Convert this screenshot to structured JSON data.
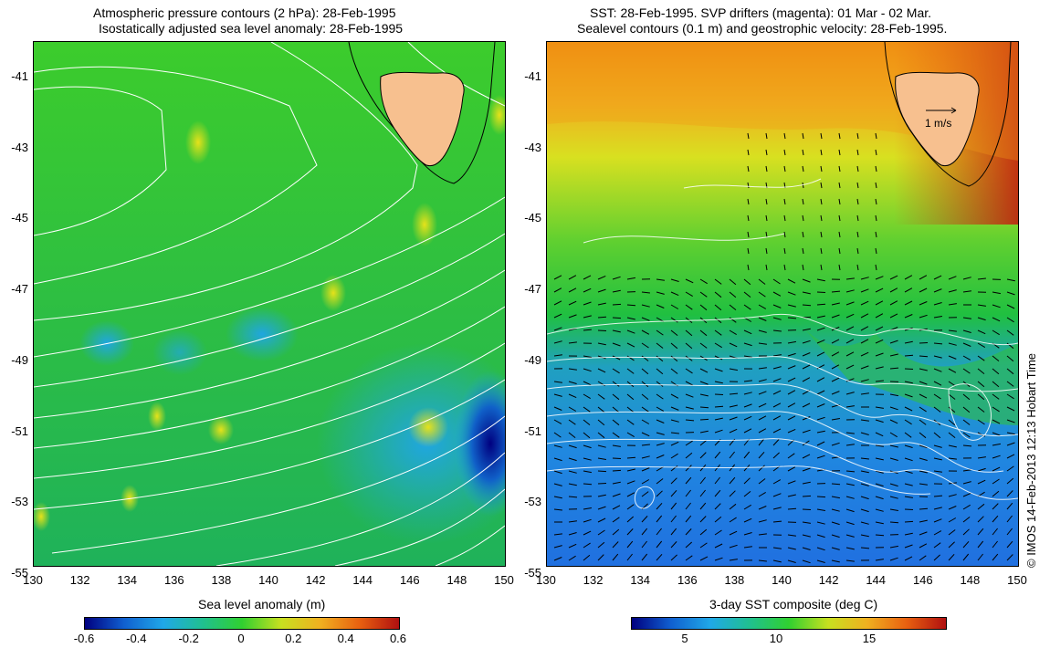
{
  "left_panel": {
    "title_line1": "Atmospheric pressure contours (2 hPa): 28-Feb-1995",
    "title_line2": "Isostatically adjusted sea level anomaly: 28-Feb-1995",
    "colorbar_title": "Sea level anomaly (m)",
    "colorbar_labels": [
      "-0.6",
      "-0.4",
      "-0.2",
      "0",
      "0.2",
      "0.4",
      "0.6"
    ]
  },
  "right_panel": {
    "title_line1": "SST: 28-Feb-1995. SVP drifters (magenta): 01 Mar - 02 Mar.",
    "title_line2": "Sealevel contours (0.1 m) and geostrophic velocity: 28-Feb-1995.",
    "colorbar_title": "3-day SST composite (deg C)",
    "colorbar_labels": [
      "5",
      "10",
      "15"
    ],
    "velocity_scale_label": "1 m/s"
  },
  "axes": {
    "y_labels": [
      "-41",
      "-43",
      "-45",
      "-47",
      "-49",
      "-51",
      "-53",
      "-55"
    ],
    "x_labels": [
      "130",
      "132",
      "134",
      "136",
      "138",
      "140",
      "142",
      "144",
      "146",
      "148",
      "150"
    ]
  },
  "credit": "© IMOS 14-Feb-2013 12:13 Hobart Time",
  "colors": {
    "land": "#f7c08f",
    "background": "#ffffff"
  }
}
